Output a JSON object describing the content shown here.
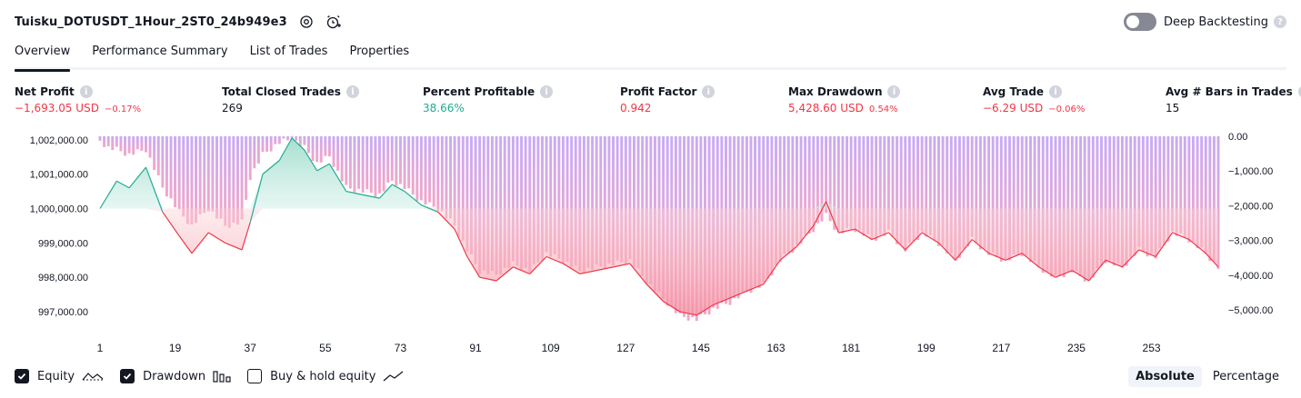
{
  "header": {
    "title": "Tuisku_DOTUSDT_1Hour_2ST0_24b949e3",
    "deep_backtesting_label": "Deep Backtesting"
  },
  "tabs": [
    {
      "label": "Overview"
    },
    {
      "label": "Performance Summary"
    },
    {
      "label": "List of Trades"
    },
    {
      "label": "Properties"
    }
  ],
  "metrics": {
    "net_profit": {
      "label": "Net Profit",
      "value": "−1,693.05 USD",
      "pct": "−0.17%"
    },
    "total_closed_trades": {
      "label": "Total Closed Trades",
      "value": "269"
    },
    "percent_profitable": {
      "label": "Percent Profitable",
      "value": "38.66%"
    },
    "profit_factor": {
      "label": "Profit Factor",
      "value": "0.942"
    },
    "max_drawdown": {
      "label": "Max Drawdown",
      "value": "5,428.60 USD",
      "pct": "0.54%"
    },
    "avg_trade": {
      "label": "Avg Trade",
      "value": "−6.29 USD",
      "pct": "−0.06%"
    },
    "avg_bars": {
      "label": "Avg # Bars in Trades",
      "value": "15"
    }
  },
  "legend": {
    "equity": "Equity",
    "drawdown": "Drawdown",
    "buy_hold": "Buy & hold equity"
  },
  "modes": {
    "absolute": "Absolute",
    "percentage": "Percentage"
  },
  "colors": {
    "profit": "#22ab94",
    "loss": "#f23645",
    "drawdown_bar": "#c9aaf5",
    "equity_fill_up": "#cdeee6",
    "equity_fill_down": "#fbd2d6"
  },
  "chart_data": {
    "type": "area",
    "left_axis": {
      "label": "Equity",
      "ticks": [
        "1,002,000.00",
        "1,001,000.00",
        "1,000,000.00",
        "999,000.00",
        "998,000.00",
        "997,000.00"
      ],
      "range": [
        996500,
        1002100
      ]
    },
    "right_axis": {
      "label": "Drawdown",
      "ticks": [
        "0.00",
        "−1,000.00",
        "−2,000.00",
        "−3,000.00",
        "−4,000.00",
        "−5,000.00"
      ],
      "range": [
        -5550,
        0
      ]
    },
    "x_ticks": [
      "1",
      "19",
      "37",
      "55",
      "73",
      "91",
      "109",
      "127",
      "145",
      "163",
      "181",
      "199",
      "217",
      "235",
      "253"
    ],
    "x_range": [
      1,
      269
    ],
    "equity_points": [
      [
        1,
        1000000
      ],
      [
        5,
        1000800
      ],
      [
        8,
        1000600
      ],
      [
        12,
        1001200
      ],
      [
        16,
        999900
      ],
      [
        20,
        999200
      ],
      [
        23,
        998700
      ],
      [
        27,
        999300
      ],
      [
        31,
        999000
      ],
      [
        35,
        998800
      ],
      [
        37,
        999600
      ],
      [
        40,
        1001000
      ],
      [
        44,
        1001400
      ],
      [
        47,
        1002050
      ],
      [
        50,
        1001700
      ],
      [
        53,
        1001100
      ],
      [
        56,
        1001300
      ],
      [
        60,
        1000500
      ],
      [
        64,
        1000400
      ],
      [
        68,
        1000300
      ],
      [
        71,
        1000700
      ],
      [
        74,
        1000500
      ],
      [
        78,
        1000100
      ],
      [
        82,
        999900
      ],
      [
        86,
        999400
      ],
      [
        89,
        998600
      ],
      [
        92,
        998000
      ],
      [
        96,
        997900
      ],
      [
        100,
        998300
      ],
      [
        104,
        998100
      ],
      [
        108,
        998600
      ],
      [
        112,
        998400
      ],
      [
        116,
        998100
      ],
      [
        120,
        998200
      ],
      [
        124,
        998300
      ],
      [
        128,
        998400
      ],
      [
        132,
        997800
      ],
      [
        136,
        997300
      ],
      [
        140,
        997000
      ],
      [
        144,
        996900
      ],
      [
        148,
        997200
      ],
      [
        152,
        997400
      ],
      [
        156,
        997600
      ],
      [
        160,
        997800
      ],
      [
        164,
        998500
      ],
      [
        168,
        998900
      ],
      [
        172,
        999500
      ],
      [
        175,
        1000200
      ],
      [
        178,
        999300
      ],
      [
        182,
        999400
      ],
      [
        186,
        999100
      ],
      [
        190,
        999300
      ],
      [
        194,
        998800
      ],
      [
        198,
        999300
      ],
      [
        202,
        999000
      ],
      [
        206,
        998500
      ],
      [
        210,
        999100
      ],
      [
        214,
        998700
      ],
      [
        218,
        998500
      ],
      [
        222,
        998700
      ],
      [
        226,
        998300
      ],
      [
        230,
        998000
      ],
      [
        234,
        998200
      ],
      [
        238,
        997900
      ],
      [
        242,
        998500
      ],
      [
        246,
        998300
      ],
      [
        250,
        998800
      ],
      [
        254,
        998600
      ],
      [
        258,
        999300
      ],
      [
        262,
        999100
      ],
      [
        266,
        998700
      ],
      [
        269,
        998300
      ]
    ],
    "drawdown_envelope": [
      [
        1,
        -50
      ],
      [
        3,
        -250
      ],
      [
        5,
        -300
      ],
      [
        8,
        -450
      ],
      [
        12,
        -300
      ],
      [
        16,
        -1400
      ],
      [
        20,
        -2100
      ],
      [
        23,
        -2500
      ],
      [
        27,
        -2000
      ],
      [
        31,
        -2500
      ],
      [
        35,
        -2400
      ],
      [
        37,
        -1100
      ],
      [
        40,
        -450
      ],
      [
        44,
        -100
      ],
      [
        47,
        0
      ],
      [
        50,
        -250
      ],
      [
        53,
        -700
      ],
      [
        56,
        -500
      ],
      [
        60,
        -1400
      ],
      [
        64,
        -1500
      ],
      [
        68,
        -1600
      ],
      [
        71,
        -1200
      ],
      [
        74,
        -1400
      ],
      [
        78,
        -1800
      ],
      [
        82,
        -2000
      ],
      [
        86,
        -2500
      ],
      [
        89,
        -3200
      ],
      [
        92,
        -3800
      ],
      [
        96,
        -3900
      ],
      [
        100,
        -3600
      ],
      [
        104,
        -3800
      ],
      [
        108,
        -3300
      ],
      [
        112,
        -3500
      ],
      [
        116,
        -3800
      ],
      [
        120,
        -3700
      ],
      [
        124,
        -3600
      ],
      [
        128,
        -3500
      ],
      [
        132,
        -4100
      ],
      [
        136,
        -4600
      ],
      [
        140,
        -5100
      ],
      [
        144,
        -5200
      ],
      [
        148,
        -4900
      ],
      [
        152,
        -4700
      ],
      [
        156,
        -4400
      ],
      [
        160,
        -4200
      ],
      [
        164,
        -3500
      ],
      [
        168,
        -3100
      ],
      [
        172,
        -2600
      ],
      [
        175,
        -2200
      ],
      [
        178,
        -2700
      ],
      [
        182,
        -2600
      ],
      [
        186,
        -2900
      ],
      [
        190,
        -2700
      ],
      [
        194,
        -3200
      ],
      [
        198,
        -2700
      ],
      [
        202,
        -3000
      ],
      [
        206,
        -3500
      ],
      [
        210,
        -2900
      ],
      [
        214,
        -3300
      ],
      [
        218,
        -3500
      ],
      [
        222,
        -3300
      ],
      [
        226,
        -3700
      ],
      [
        230,
        -4000
      ],
      [
        234,
        -3800
      ],
      [
        238,
        -4100
      ],
      [
        242,
        -3500
      ],
      [
        246,
        -3700
      ],
      [
        250,
        -3200
      ],
      [
        254,
        -3400
      ],
      [
        258,
        -2700
      ],
      [
        262,
        -2900
      ],
      [
        266,
        -3300
      ],
      [
        269,
        -3700
      ]
    ]
  }
}
